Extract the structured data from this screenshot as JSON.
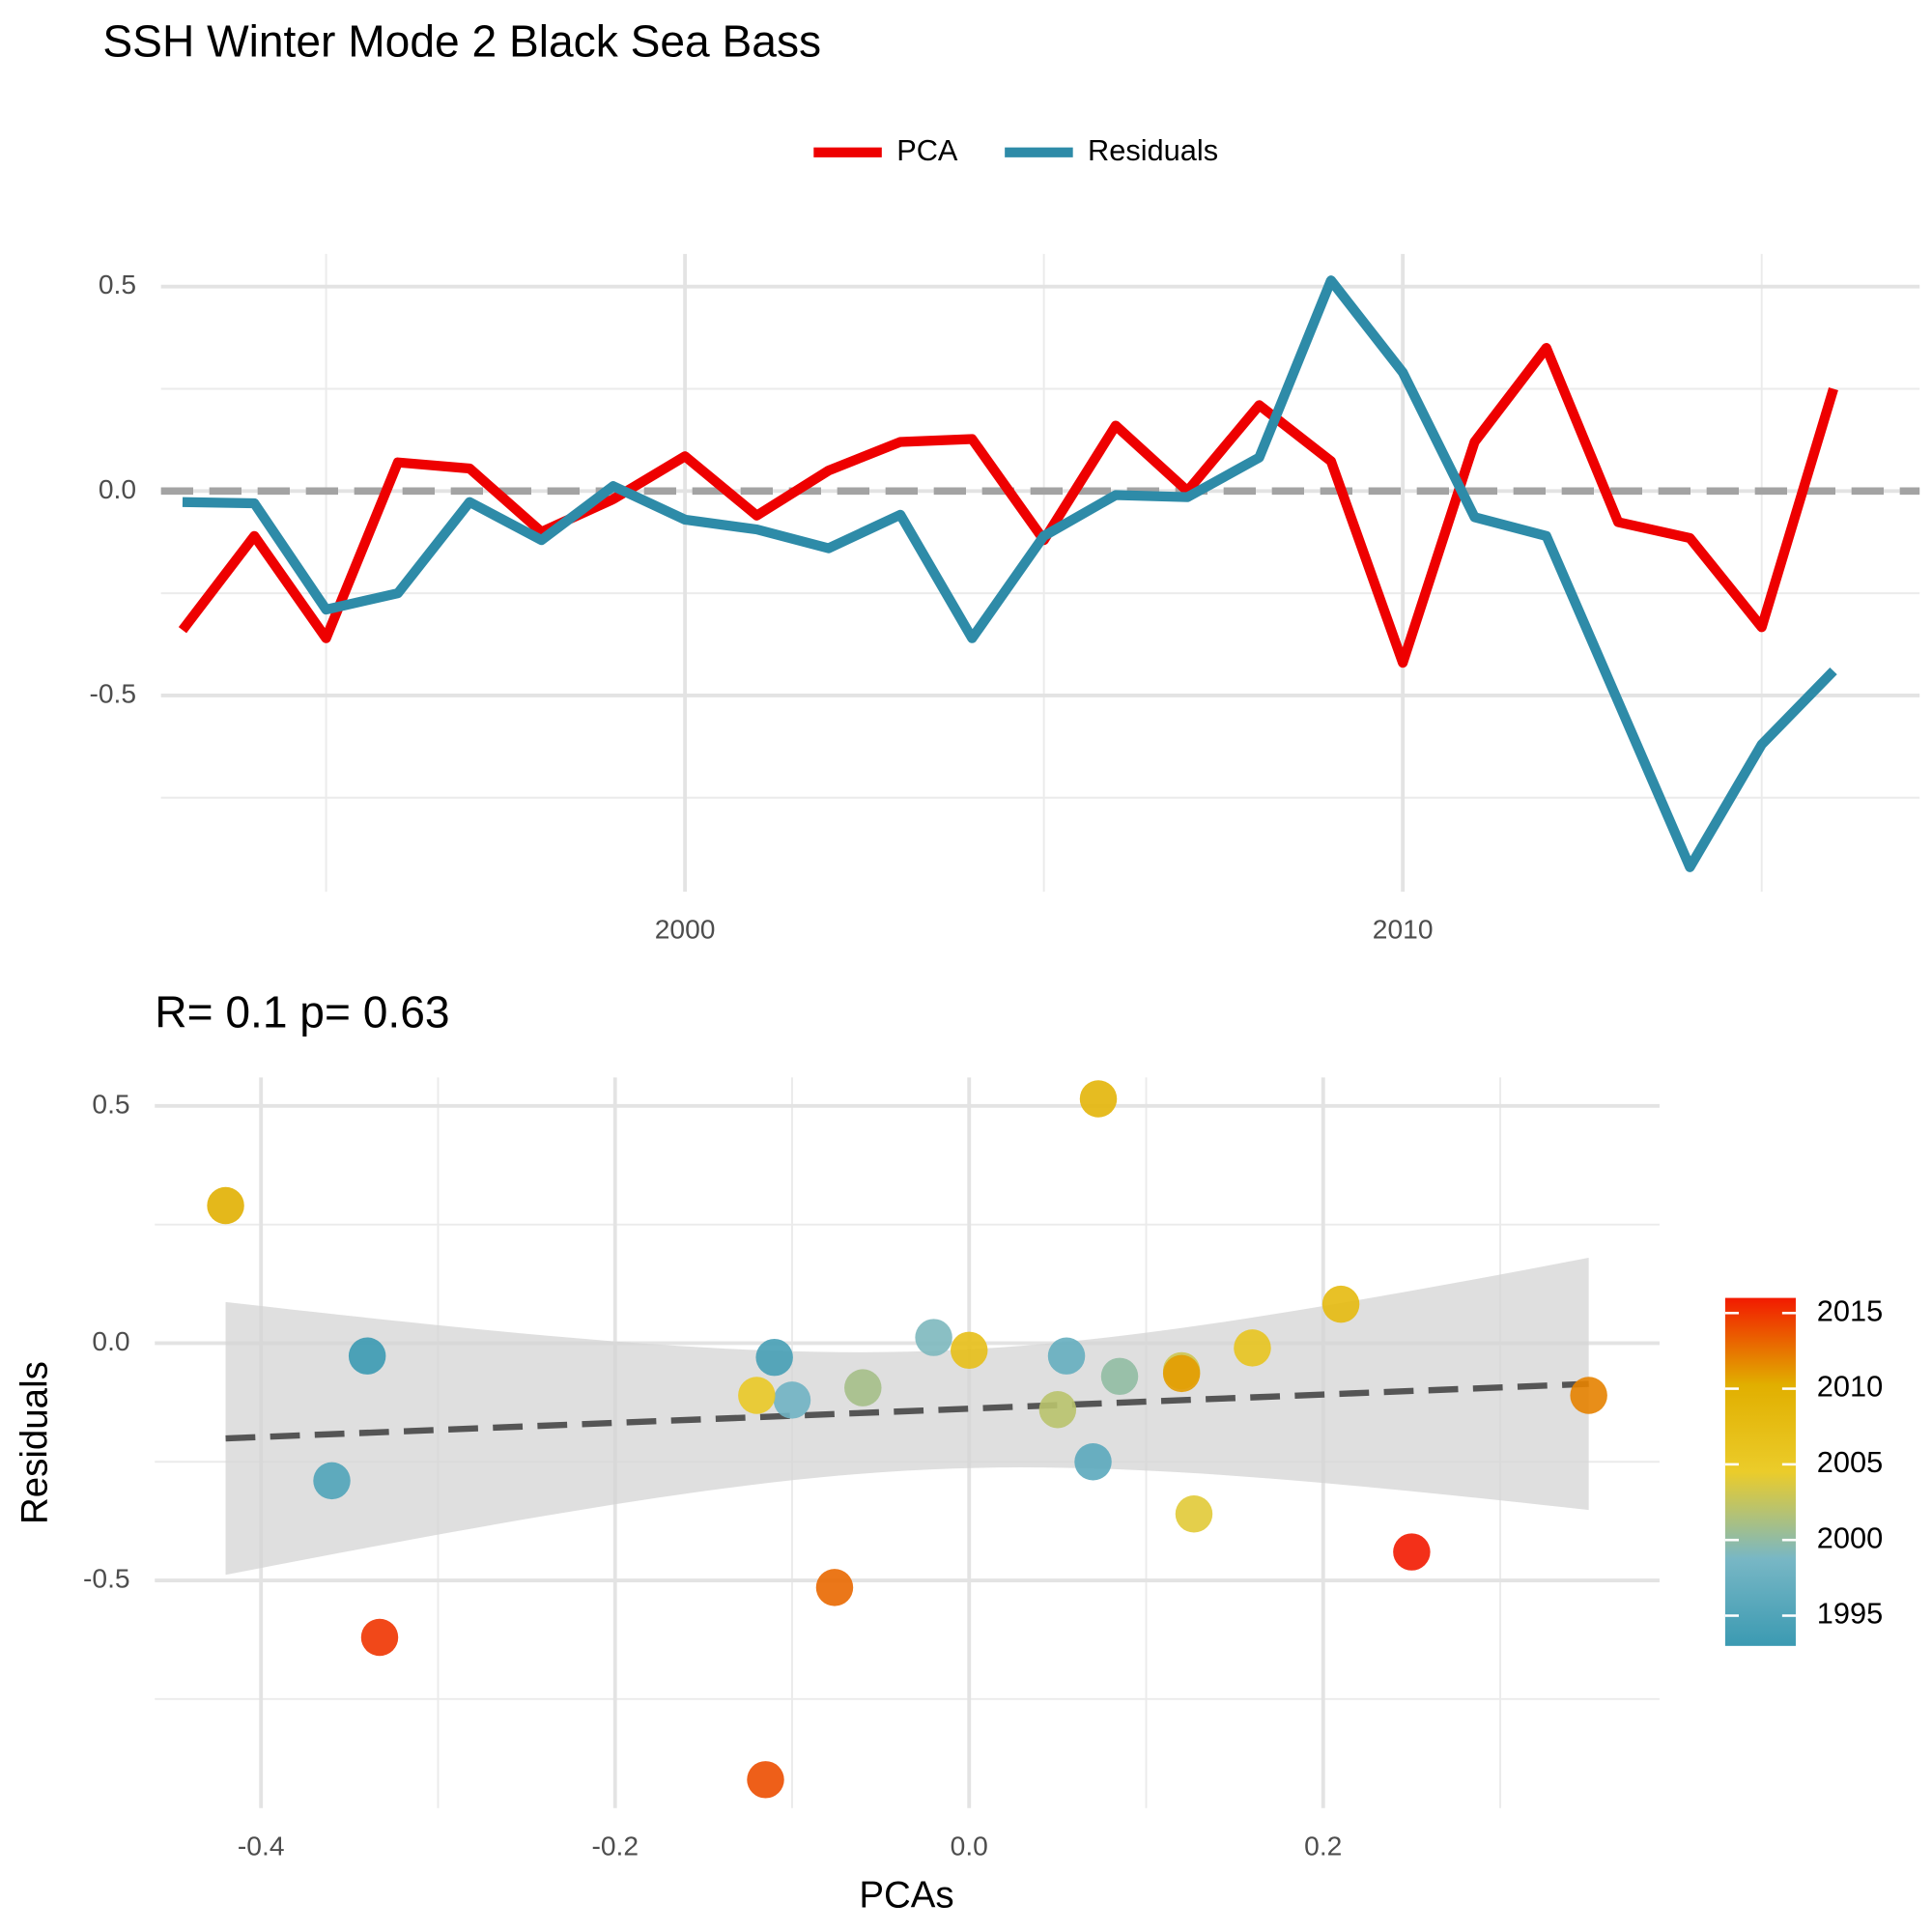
{
  "chart_data": [
    {
      "type": "line",
      "title": "SSH Winter Mode 2 Black Sea Bass",
      "legend": "top",
      "x": [
        1993,
        1994,
        1995,
        1996,
        1997,
        1998,
        1999,
        2000,
        2001,
        2002,
        2003,
        2004,
        2005,
        2006,
        2007,
        2008,
        2009,
        2010,
        2011,
        2012,
        2013,
        2014,
        2015,
        2016
      ],
      "series": [
        {
          "name": "PCA",
          "color": "#ee0000",
          "values": [
            -0.34,
            -0.11,
            -0.36,
            0.07,
            0.055,
            -0.1,
            -0.02,
            0.085,
            -0.06,
            0.05,
            0.12,
            0.127,
            -0.12,
            0.16,
            0.0,
            0.21,
            0.073,
            -0.42,
            0.12,
            0.35,
            -0.076,
            -0.115,
            -0.333,
            0.25
          ]
        },
        {
          "name": "Residuals",
          "color": "#2e8ba8",
          "values": [
            -0.027,
            -0.03,
            -0.29,
            -0.25,
            -0.027,
            -0.12,
            0.012,
            -0.07,
            -0.094,
            -0.14,
            -0.058,
            -0.36,
            -0.11,
            -0.01,
            -0.015,
            0.082,
            0.515,
            0.29,
            -0.064,
            -0.11,
            -0.515,
            -0.92,
            -0.62,
            -0.44
          ]
        }
      ],
      "hline": 0,
      "grid": true,
      "xlim": [
        1992.7,
        2017.2
      ],
      "xticks": [
        2000,
        2010
      ],
      "ylim": [
        -0.98,
        0.58
      ],
      "yticks": [
        {
          "value": -0.5,
          "label": "-0.5"
        },
        {
          "value": 0,
          "label": "0.0"
        },
        0.5
      ]
    },
    {
      "type": "scatter",
      "subtitle": "R= 0.1  p= 0.63",
      "x_label": "PCAs",
      "y_label": "Residuals",
      "grid": true,
      "fit": "lm",
      "x": [
        -0.34,
        -0.11,
        -0.36,
        0.07,
        0.055,
        -0.1,
        -0.02,
        0.085,
        -0.06,
        0.05,
        0.12,
        0.127,
        -0.12,
        0.16,
        0.0,
        0.21,
        0.073,
        -0.42,
        0.12,
        0.35,
        -0.076,
        -0.115,
        -0.333,
        0.25
      ],
      "values": [
        -0.027,
        -0.03,
        -0.29,
        -0.25,
        -0.027,
        -0.12,
        0.012,
        -0.07,
        -0.094,
        -0.14,
        -0.058,
        -0.36,
        -0.11,
        -0.01,
        -0.015,
        0.082,
        0.515,
        0.29,
        -0.064,
        -0.11,
        -0.515,
        -0.92,
        -0.62,
        -0.44
      ],
      "color_values": [
        1993,
        1994,
        1995,
        1996,
        1997,
        1998,
        1999,
        2000,
        2001,
        2002,
        2003,
        2004,
        2005,
        2006,
        2007,
        2008,
        2009,
        2010,
        2011,
        2012,
        2013,
        2014,
        2015,
        2016
      ],
      "palette": [
        "#3B9AB2",
        "#78B7C5",
        "#EBCC2A",
        "#E1AF00",
        "#F21A00"
      ],
      "colorbar_ticks": [
        1995,
        2000,
        2005,
        2010,
        2015
      ],
      "xlim": [
        -0.46,
        0.39
      ],
      "xticks": [
        -0.4,
        -0.2,
        {
          "value": 0,
          "label": "0.0"
        },
        0.2
      ],
      "ylim": [
        -0.98,
        0.56
      ],
      "yticks": [
        {
          "value": -0.5,
          "label": "-0.5"
        },
        {
          "value": 0,
          "label": "0.0"
        },
        0.5
      ]
    }
  ]
}
